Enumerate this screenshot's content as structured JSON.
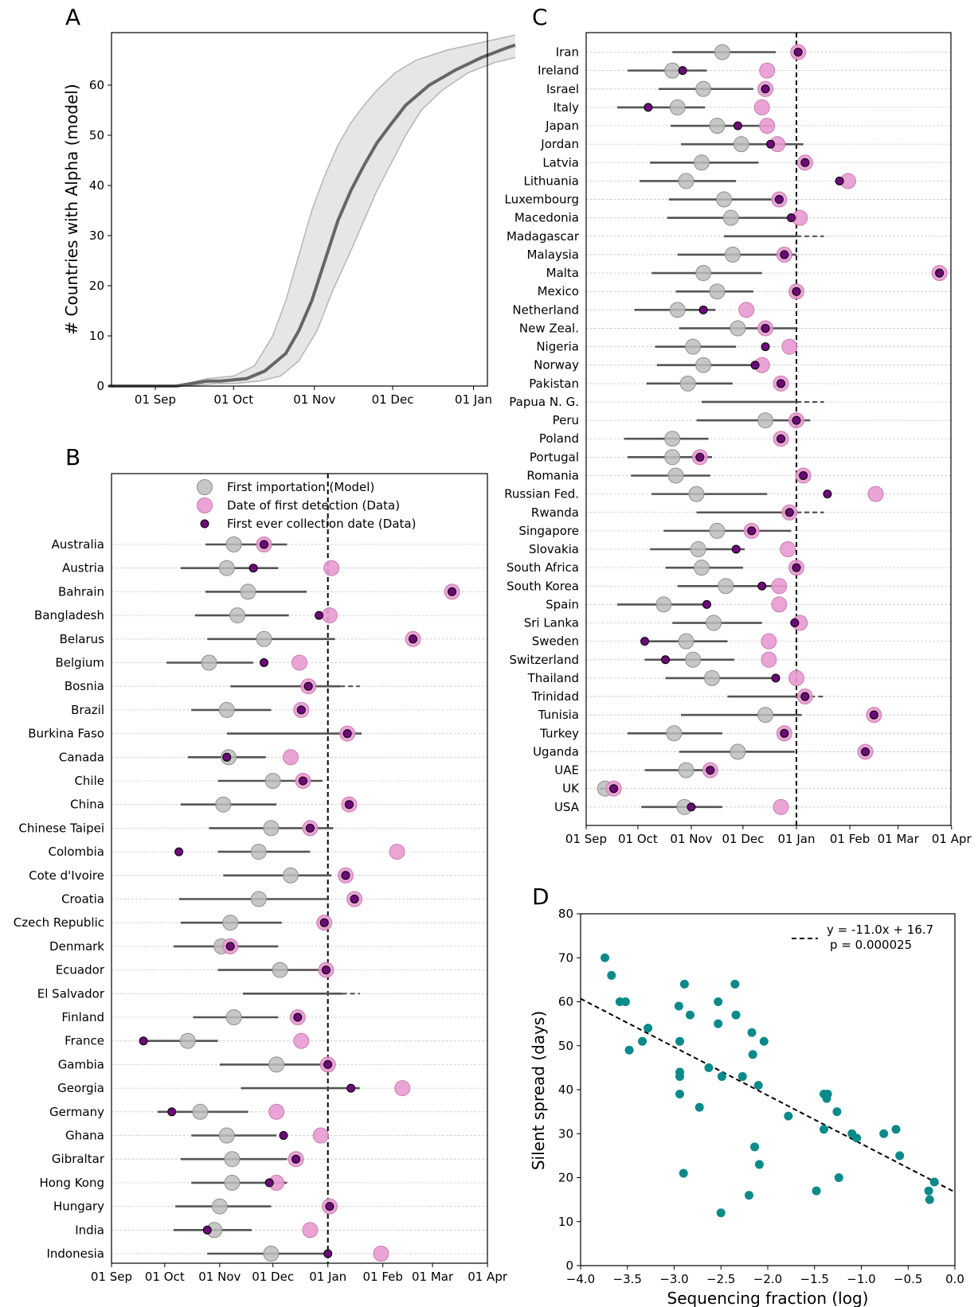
{
  "chart_data": [
    {
      "panel": "A",
      "type": "area",
      "ylabel": "# Countries with Alpha (model)",
      "x_ticks": [
        "01 Sep",
        "01 Oct",
        "01 Nov",
        "01 Dec",
        "01 Jan"
      ],
      "ylim": [
        0,
        70
      ],
      "y_ticks": [
        0,
        10,
        20,
        30,
        40,
        50,
        60
      ],
      "median": [
        [
          -18,
          0
        ],
        [
          8,
          0
        ],
        [
          20,
          1
        ],
        [
          25,
          1
        ],
        [
          35,
          1.5
        ],
        [
          42,
          3
        ],
        [
          50,
          6.5
        ],
        [
          55,
          11
        ],
        [
          60,
          17
        ],
        [
          65,
          25
        ],
        [
          70,
          33
        ],
        [
          75,
          39
        ],
        [
          80,
          44
        ],
        [
          85,
          48.5
        ],
        [
          90,
          52
        ],
        [
          96,
          56
        ],
        [
          105,
          60
        ],
        [
          115,
          63
        ],
        [
          125,
          65.5
        ],
        [
          135,
          67.5
        ],
        [
          138,
          68
        ]
      ],
      "upper": [
        [
          -18,
          0
        ],
        [
          8,
          0
        ],
        [
          20,
          1.5
        ],
        [
          30,
          2
        ],
        [
          38,
          4
        ],
        [
          45,
          10
        ],
        [
          50,
          17
        ],
        [
          55,
          26
        ],
        [
          60,
          35
        ],
        [
          65,
          42
        ],
        [
          70,
          48
        ],
        [
          75,
          52.5
        ],
        [
          80,
          56
        ],
        [
          85,
          59
        ],
        [
          92,
          62.5
        ],
        [
          100,
          65
        ],
        [
          112,
          67
        ],
        [
          125,
          68.5
        ],
        [
          138,
          70
        ]
      ],
      "lower": [
        [
          -18,
          0
        ],
        [
          10,
          0
        ],
        [
          24,
          0.5
        ],
        [
          30,
          0.5
        ],
        [
          40,
          1
        ],
        [
          48,
          2
        ],
        [
          55,
          5
        ],
        [
          62,
          11
        ],
        [
          68,
          19
        ],
        [
          75,
          27
        ],
        [
          80,
          33
        ],
        [
          85,
          39
        ],
        [
          90,
          44
        ],
        [
          96,
          50
        ],
        [
          102,
          55
        ],
        [
          110,
          59
        ],
        [
          120,
          62.5
        ],
        [
          130,
          64.5
        ],
        [
          138,
          65.5
        ]
      ]
    },
    {
      "panel": "B",
      "type": "scatter",
      "x_ticks": [
        "01 Sep",
        "01 Oct",
        "01 Nov",
        "01 Dec",
        "01 Jan",
        "01 Feb",
        "01 Mar",
        "01 Apr"
      ],
      "reference_line": "01 Jan",
      "legend": [
        "First importation (Model)",
        "Date of first detection (Data)",
        "First ever collection date (Data)"
      ],
      "rows": [
        {
          "country": "Australia",
          "model": 69,
          "lo": 53,
          "hi": 99,
          "detect": 86,
          "collect": 86
        },
        {
          "country": "Austria",
          "model": 65,
          "lo": 39,
          "hi": 94,
          "detect": 124,
          "collect": 80
        },
        {
          "country": "Bahrain",
          "model": 77,
          "lo": 53,
          "hi": 110,
          "detect": 192,
          "collect": 192
        },
        {
          "country": "Bangladesh",
          "model": 71,
          "lo": 47,
          "hi": 100,
          "detect": 123,
          "collect": 117
        },
        {
          "country": "Belarus",
          "model": 86,
          "lo": 54,
          "hi": 126,
          "detect": 170,
          "collect": 170
        },
        {
          "country": "Belgium",
          "model": 55,
          "lo": 31,
          "hi": 80,
          "detect": 106,
          "collect": 86
        },
        {
          "country": "Bosnia",
          "model": null,
          "lo": 67,
          "hi": 129,
          "hi_dash": 140,
          "detect": 111,
          "collect": 111
        },
        {
          "country": "Brazil",
          "model": 65,
          "lo": 45,
          "hi": 90,
          "detect": 107,
          "collect": 107
        },
        {
          "country": "Burkina Faso",
          "model": null,
          "lo": 65,
          "hi": 141,
          "detect": 133,
          "collect": 133
        },
        {
          "country": "Canada",
          "model": 66,
          "lo": 43,
          "hi": 87,
          "detect": 101,
          "collect": 65
        },
        {
          "country": "Chile",
          "model": 91,
          "lo": 60,
          "hi": 119,
          "detect": 108,
          "collect": 108
        },
        {
          "country": "China",
          "model": 63,
          "lo": 39,
          "hi": 93,
          "detect": 134,
          "collect": 134
        },
        {
          "country": "Chinese Taipei",
          "model": 90,
          "lo": 55,
          "hi": 125,
          "detect": 112,
          "collect": 112
        },
        {
          "country": "Colombia",
          "model": 83,
          "lo": 60,
          "hi": 112,
          "detect": 161,
          "collect": 38
        },
        {
          "country": "Cote d'Ivoire",
          "model": 101,
          "lo": 63,
          "hi": 124,
          "detect": 132,
          "collect": 132
        },
        {
          "country": "Croatia",
          "model": 83,
          "lo": 38,
          "hi": 122,
          "detect": 137,
          "collect": 137
        },
        {
          "country": "Czech Republic",
          "model": 67,
          "lo": 39,
          "hi": 96,
          "detect": 120,
          "collect": 120
        },
        {
          "country": "Denmark",
          "model": 62,
          "lo": 35,
          "hi": 94,
          "detect": 67,
          "collect": 67
        },
        {
          "country": "Ecuador",
          "model": 95,
          "lo": 60,
          "hi": 124,
          "detect": 121,
          "collect": 121
        },
        {
          "country": "El Salvador",
          "model": null,
          "lo": 74,
          "hi": 130,
          "hi_dash": 140,
          "detect": null,
          "collect": null
        },
        {
          "country": "Finland",
          "model": 69,
          "lo": 46,
          "hi": 94,
          "detect": 105,
          "collect": 105
        },
        {
          "country": "France",
          "model": 43,
          "lo": 18,
          "hi": 60,
          "detect": 107,
          "collect": 18
        },
        {
          "country": "Gambia",
          "model": 93,
          "lo": 61,
          "hi": 121,
          "detect": 122,
          "collect": 122
        },
        {
          "country": "Georgia",
          "model": null,
          "lo": 73,
          "hi": 140,
          "detect": 164,
          "collect": 135
        },
        {
          "country": "Germany",
          "model": 50,
          "lo": 26,
          "hi": 77,
          "detect": 93,
          "collect": 34
        },
        {
          "country": "Ghana",
          "model": 65,
          "lo": 45,
          "hi": 93,
          "detect": 118,
          "collect": 97
        },
        {
          "country": "Gibraltar",
          "model": 68,
          "lo": 39,
          "hi": 99,
          "detect": 104,
          "collect": 104
        },
        {
          "country": "Hong Kong",
          "model": 68,
          "lo": 45,
          "hi": 99,
          "detect": 93,
          "collect": 89
        },
        {
          "country": "Hungary",
          "model": 61,
          "lo": 36,
          "hi": 90,
          "detect": 123,
          "collect": 123
        },
        {
          "country": "India",
          "model": 58,
          "lo": 35,
          "hi": 79,
          "detect": 112,
          "collect": 54
        },
        {
          "country": "Indonesia",
          "model": 90,
          "lo": 54,
          "hi": 122,
          "detect": 152,
          "collect": 122
        }
      ]
    },
    {
      "panel": "C",
      "type": "scatter",
      "x_ticks": [
        "01 Sep",
        "01 Oct",
        "01 Nov",
        "01 Dec",
        "01 Jan",
        "01 Feb",
        "01 Mar",
        "01 Apr"
      ],
      "reference_line": "01 Jan",
      "rows": [
        {
          "country": "Iran",
          "model": 79,
          "lo": 50,
          "hi": 110,
          "detect": 123,
          "collect": 123
        },
        {
          "country": "Ireland",
          "model": 50,
          "lo": 24,
          "hi": 70,
          "detect": 105,
          "collect": 56
        },
        {
          "country": "Israel",
          "model": 68,
          "lo": 42,
          "hi": 97,
          "detect": 104,
          "collect": 104
        },
        {
          "country": "Italy",
          "model": 53,
          "lo": 18,
          "hi": 69,
          "detect": 102,
          "collect": 36
        },
        {
          "country": "Japan",
          "model": 76,
          "lo": 49,
          "hi": 108,
          "detect": 105,
          "collect": 88
        },
        {
          "country": "Jordan",
          "model": 90,
          "lo": 55,
          "hi": 126,
          "detect": 111,
          "collect": 107
        },
        {
          "country": "Latvia",
          "model": 67,
          "lo": 37,
          "hi": 100,
          "detect": 127,
          "collect": 127
        },
        {
          "country": "Lithuania",
          "model": 58,
          "lo": 31,
          "hi": 87,
          "detect": 152,
          "collect": 147
        },
        {
          "country": "Luxembourg",
          "model": 80,
          "lo": 48,
          "hi": 114,
          "detect": 112,
          "collect": 112
        },
        {
          "country": "Macedonia",
          "model": 84,
          "lo": 47,
          "hi": 122,
          "detect": 124,
          "collect": 119
        },
        {
          "country": "Madagascar",
          "model": null,
          "lo": 80,
          "hi": 122,
          "hi_dash": 138,
          "detect": null,
          "collect": null
        },
        {
          "country": "Malaysia",
          "model": 85,
          "lo": 53,
          "hi": 122,
          "detect": 115,
          "collect": 115
        },
        {
          "country": "Malta",
          "model": 68,
          "lo": 38,
          "hi": 102,
          "detect": 205,
          "collect": 205
        },
        {
          "country": "Mexico",
          "model": 76,
          "lo": 52,
          "hi": 97,
          "detect": 122,
          "collect": 122
        },
        {
          "country": "Netherland",
          "model": 53,
          "lo": 28,
          "hi": 75,
          "detect": 93,
          "collect": 68
        },
        {
          "country": "New Zeal.",
          "model": 88,
          "lo": 54,
          "hi": 122,
          "detect": 104,
          "collect": 104
        },
        {
          "country": "Nigeria",
          "model": 62,
          "lo": 40,
          "hi": 87,
          "detect": 118,
          "collect": 104
        },
        {
          "country": "Norway",
          "model": 68,
          "lo": 41,
          "hi": 101,
          "detect": 102,
          "collect": 98
        },
        {
          "country": "Pakistan",
          "model": 59,
          "lo": 35,
          "hi": 85,
          "detect": 113,
          "collect": 113
        },
        {
          "country": "Papua N. G.",
          "model": null,
          "lo": 67,
          "hi": 122,
          "hi_dash": 138,
          "detect": null,
          "collect": null
        },
        {
          "country": "Peru",
          "model": 104,
          "lo": 64,
          "hi": 130,
          "detect": 122,
          "collect": 122
        },
        {
          "country": "Poland",
          "model": 50,
          "lo": 22,
          "hi": 71,
          "detect": 113,
          "collect": 113
        },
        {
          "country": "Portugal",
          "model": 50,
          "lo": 24,
          "hi": 73,
          "detect": 66,
          "collect": 66
        },
        {
          "country": "Romania",
          "model": 52,
          "lo": 26,
          "hi": 72,
          "detect": 126,
          "collect": 126
        },
        {
          "country": "Russian Fed.",
          "model": 64,
          "lo": 38,
          "hi": 105,
          "detect": 168,
          "collect": 140
        },
        {
          "country": "Rwanda",
          "model": null,
          "lo": 64,
          "hi": 122,
          "hi_dash": 138,
          "detect": 118,
          "collect": 118
        },
        {
          "country": "Singapore",
          "model": 76,
          "lo": 45,
          "hi": 119,
          "detect": 96,
          "collect": 96
        },
        {
          "country": "Slovakia",
          "model": 65,
          "lo": 37,
          "hi": 92,
          "detect": 117,
          "collect": 87
        },
        {
          "country": "South Africa",
          "model": 67,
          "lo": 46,
          "hi": 91,
          "detect": 122,
          "collect": 122
        },
        {
          "country": "South Korea",
          "model": 81,
          "lo": 53,
          "hi": 116,
          "detect": 112,
          "collect": 102
        },
        {
          "country": "Spain",
          "model": 45,
          "lo": 18,
          "hi": 70,
          "detect": 112,
          "collect": 70
        },
        {
          "country": "Sri Lanka",
          "model": 74,
          "lo": 50,
          "hi": 102,
          "detect": 124,
          "collect": 121
        },
        {
          "country": "Sweden",
          "model": 58,
          "lo": 34,
          "hi": 82,
          "detect": 106,
          "collect": 34
        },
        {
          "country": "Switzerland",
          "model": 62,
          "lo": 34,
          "hi": 86,
          "detect": 106,
          "collect": 46
        },
        {
          "country": "Thailand",
          "model": 73,
          "lo": 46,
          "hi": 110,
          "detect": 122,
          "collect": 110
        },
        {
          "country": "Trinidad",
          "model": null,
          "lo": 82,
          "hi": 130,
          "hi_dash": 138,
          "detect": 127,
          "collect": 127
        },
        {
          "country": "Tunisia",
          "model": 104,
          "lo": 55,
          "hi": 125,
          "detect": 167,
          "collect": 167
        },
        {
          "country": "Turkey",
          "model": 51,
          "lo": 24,
          "hi": 79,
          "detect": 115,
          "collect": 115
        },
        {
          "country": "Uganda",
          "model": 88,
          "lo": 54,
          "hi": 121,
          "detect": 162,
          "collect": 162
        },
        {
          "country": "UAE",
          "model": 58,
          "lo": 34,
          "hi": 76,
          "detect": 72,
          "collect": 72
        },
        {
          "country": "UK",
          "model": 11,
          "lo": 8,
          "hi": 19,
          "detect": 16,
          "collect": 16
        },
        {
          "country": "USA",
          "model": 57,
          "lo": 32,
          "hi": 79,
          "detect": 113,
          "collect": 61
        }
      ]
    },
    {
      "panel": "D",
      "type": "scatter",
      "xlabel": "Sequencing fraction (log)",
      "ylabel": "Silent spread (days)",
      "xlim": [
        -4.0,
        0.0
      ],
      "ylim": [
        0,
        80
      ],
      "x_ticks": [
        "−4.0",
        "−3.5",
        "−3.0",
        "−2.5",
        "−2.0",
        "−1.5",
        "−1.0",
        "−0.5",
        "0.0"
      ],
      "y_ticks": [
        "0",
        "10",
        "20",
        "30",
        "40",
        "50",
        "60",
        "70",
        "80"
      ],
      "fit": {
        "slope": -11.0,
        "intercept": 16.7
      },
      "legend": [
        "y = -11.0x + 16.7",
        "p = 0.000025"
      ],
      "points": [
        [
          -3.74,
          70
        ],
        [
          -3.67,
          66
        ],
        [
          -3.58,
          60
        ],
        [
          -3.52,
          60
        ],
        [
          -3.48,
          49
        ],
        [
          -3.34,
          51
        ],
        [
          -3.28,
          54
        ],
        [
          -2.95,
          59
        ],
        [
          -2.89,
          64
        ],
        [
          -2.94,
          51
        ],
        [
          -2.94,
          44
        ],
        [
          -2.94,
          43
        ],
        [
          -2.94,
          39
        ],
        [
          -2.9,
          21
        ],
        [
          -2.83,
          57
        ],
        [
          -2.73,
          36
        ],
        [
          -2.63,
          45
        ],
        [
          -2.53,
          60
        ],
        [
          -2.53,
          55
        ],
        [
          -2.49,
          43
        ],
        [
          -2.5,
          12
        ],
        [
          -2.35,
          64
        ],
        [
          -2.34,
          57
        ],
        [
          -2.27,
          43
        ],
        [
          -2.17,
          53
        ],
        [
          -2.16,
          48
        ],
        [
          -2.14,
          27
        ],
        [
          -2.1,
          41
        ],
        [
          -2.09,
          23
        ],
        [
          -2.2,
          16
        ],
        [
          -2.04,
          51
        ],
        [
          -1.78,
          34
        ],
        [
          -1.48,
          17
        ],
        [
          -1.4,
          39
        ],
        [
          -1.36,
          39
        ],
        [
          -1.37,
          38
        ],
        [
          -1.4,
          31
        ],
        [
          -1.26,
          35
        ],
        [
          -1.24,
          20
        ],
        [
          -1.1,
          30
        ],
        [
          -1.05,
          29
        ],
        [
          -0.76,
          30
        ],
        [
          -0.63,
          31
        ],
        [
          -0.59,
          25
        ],
        [
          -0.28,
          17
        ],
        [
          -0.27,
          15
        ],
        [
          -0.22,
          19
        ]
      ]
    }
  ]
}
